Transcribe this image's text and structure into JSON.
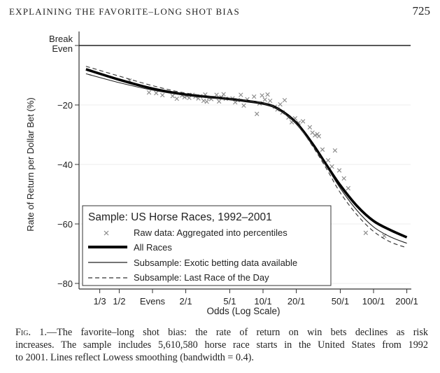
{
  "header": {
    "running_head": "EXPLAINING THE FAVORITE–LONG SHOT BIAS",
    "page_number": "725"
  },
  "caption": {
    "label": "Fig. 1.",
    "line1": "—The favorite–long shot bias: the rate of return on win bets declines as risk",
    "line2": "increases. The sample includes 5,610,580 horse race starts in the United States from 1992",
    "line3": "to 2001. Lines reflect Lowess smoothing (bandwidth = 0.4)."
  },
  "chart_data": {
    "type": "line",
    "title": "",
    "xlabel": "Odds (Log Scale)",
    "ylabel": "Rate of Return per Dollar Bet (%)",
    "x_scale": "log",
    "xlim": [
      0.216,
      205
    ],
    "ylim": [
      -83,
      5
    ],
    "x_ticks": [
      {
        "value": 0.3333,
        "label": "1/3"
      },
      {
        "value": 0.5,
        "label": "1/2"
      },
      {
        "value": 1,
        "label": "Evens"
      },
      {
        "value": 2,
        "label": "2/1"
      },
      {
        "value": 5,
        "label": "5/1"
      },
      {
        "value": 10,
        "label": "10/1"
      },
      {
        "value": 20,
        "label": "20/1"
      },
      {
        "value": 50,
        "label": "50/1"
      },
      {
        "value": 100,
        "label": "100/1"
      },
      {
        "value": 200,
        "label": "200/1"
      }
    ],
    "y_ticks": [
      {
        "value": 0,
        "label": "Break Even"
      },
      {
        "value": -20,
        "label": "−20"
      },
      {
        "value": -40,
        "label": "−40"
      },
      {
        "value": -60,
        "label": "−60"
      },
      {
        "value": -80,
        "label": "−80"
      }
    ],
    "grid": true,
    "legend": {
      "placement": "bottom-left",
      "title": "Sample: US Horse Races, 1992–2001",
      "entries": [
        "Raw data: Aggregated into percentiles",
        "All Races",
        "Subsample: Exotic betting data available",
        "Subsample: Last Race of the Day"
      ]
    },
    "series": [
      {
        "name": "All Races",
        "style": "thick",
        "x": [
          0.25,
          0.5,
          1,
          2,
          5,
          10,
          14,
          20,
          28,
          38,
          50,
          71,
          100,
          141,
          200
        ],
        "y": [
          -8,
          -11.5,
          -14.5,
          -16.5,
          -18,
          -19.5,
          -21.5,
          -26,
          -33,
          -40.5,
          -47,
          -54,
          -59,
          -62,
          -64.5
        ]
      },
      {
        "name": "Subsample: Exotic betting data available",
        "style": "thin",
        "x": [
          0.25,
          0.5,
          1,
          2,
          5,
          10,
          14,
          20,
          28,
          38,
          50,
          71,
          100,
          141,
          200
        ],
        "y": [
          -9.5,
          -12.5,
          -15,
          -16.8,
          -18.2,
          -19.6,
          -21.7,
          -26.3,
          -33.5,
          -41,
          -48,
          -55.5,
          -61,
          -64.3,
          -66.5
        ]
      },
      {
        "name": "Subsample: Last Race of the Day",
        "style": "dashed",
        "x": [
          0.25,
          0.5,
          1,
          2,
          5,
          10,
          14,
          20,
          28,
          38,
          50,
          71,
          100,
          141,
          200
        ],
        "y": [
          -7,
          -10.3,
          -13.5,
          -16,
          -17.8,
          -19.3,
          -21.5,
          -26.2,
          -33.8,
          -41.8,
          -49.5,
          -57,
          -62.5,
          -66,
          -68
        ]
      },
      {
        "name": "Raw data: Aggregated into percentiles",
        "style": "scatter",
        "x": [
          0.62,
          0.93,
          1.08,
          1.23,
          1.52,
          1.66,
          1.85,
          1.95,
          2.05,
          2.15,
          2.3,
          2.45,
          2.6,
          2.7,
          2.9,
          3.0,
          3.1,
          3.25,
          3.4,
          3.8,
          4.0,
          4.2,
          4.4,
          4.6,
          5.3,
          5.6,
          5.9,
          6.3,
          6.7,
          7.2,
          8.3,
          8.8,
          9.3,
          9.8,
          10.4,
          11,
          11.6,
          12.8,
          13.5,
          14.3,
          15.0,
          15.7,
          17,
          18.2,
          19.5,
          21,
          23,
          26.5,
          28,
          29.5,
          31,
          32,
          34.5,
          38.8,
          42,
          44.8,
          49,
          54,
          59,
          85,
          125
        ],
        "y": [
          -11.8,
          -15.8,
          -16,
          -16.7,
          -17,
          -17.9,
          -16.8,
          -17.4,
          -17,
          -17.6,
          -16.6,
          -17.2,
          -17.8,
          -17.1,
          -18.6,
          -16.5,
          -18.9,
          -17.6,
          -18,
          -16.6,
          -18.8,
          -17.4,
          -16.4,
          -17.9,
          -17.8,
          -19.1,
          -18.4,
          -16.6,
          -20.2,
          -18.1,
          -17.2,
          -23,
          -19.5,
          -16.8,
          -18.2,
          -16.5,
          -18.6,
          -20.6,
          -21.5,
          -19.8,
          -22.5,
          -18.4,
          -24.2,
          -25.8,
          -24.5,
          -26,
          -25.5,
          -27.5,
          -29.3,
          -30.2,
          -29.8,
          -30.5,
          -35,
          -38.6,
          -40.7,
          -35.3,
          -42,
          -44.7,
          -48,
          -63,
          -64
        ]
      }
    ]
  }
}
